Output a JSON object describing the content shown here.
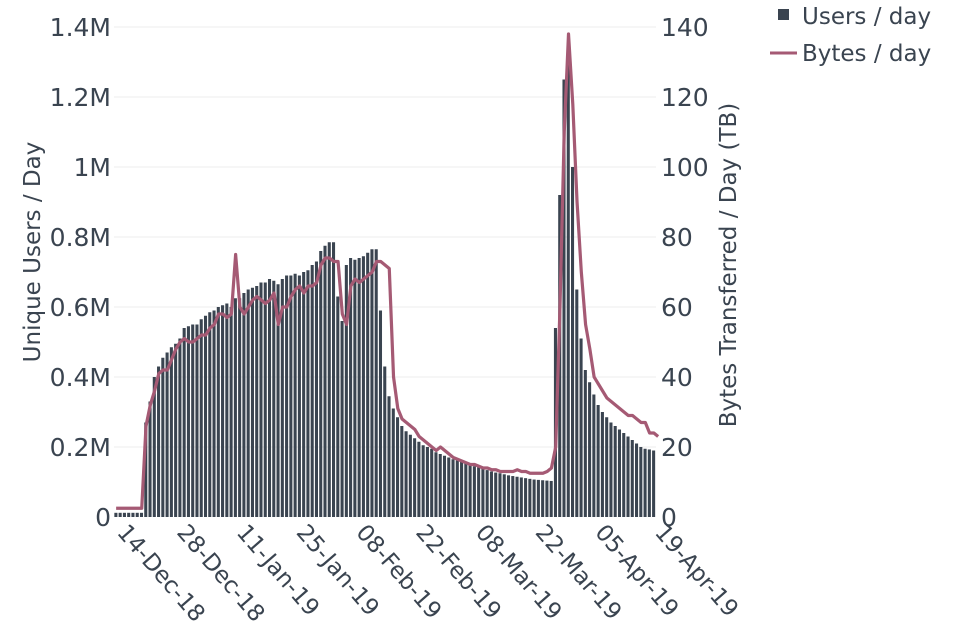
{
  "chart_data": {
    "type": "bar",
    "x_type": "date",
    "title": "",
    "ylabel": "Unique Users / Day",
    "y2label": "Bytes Transferred / Day (TB)",
    "ylim": [
      0,
      1400000
    ],
    "y2lim": [
      0,
      140
    ],
    "grid": true,
    "legend_position": "top-right",
    "colors": {
      "users": "#3a4450",
      "bytes": "#a55a74"
    },
    "y_ticks": [
      "0",
      "0.2M",
      "0.4M",
      "0.6M",
      "0.8M",
      "1M",
      "1.2M",
      "1.4M"
    ],
    "y2_ticks": [
      "0",
      "20",
      "40",
      "60",
      "80",
      "100",
      "120",
      "140"
    ],
    "x_ticks": [
      "14-Dec-18",
      "28-Dec-18",
      "11-Jan-19",
      "25-Jan-19",
      "08-Feb-19",
      "22-Feb-19",
      "08-Mar-19",
      "22-Mar-19",
      "05-Apr-19",
      "19-Apr-19"
    ],
    "x_start": "2018-12-14",
    "series": [
      {
        "name": "Users / day",
        "type": "bar",
        "axis": "y",
        "values": [
          12000,
          12000,
          12000,
          12000,
          12000,
          12000,
          12000,
          270000,
          330000,
          400000,
          430000,
          455000,
          470000,
          485000,
          495000,
          510000,
          540000,
          545000,
          550000,
          550000,
          565000,
          575000,
          585000,
          590000,
          600000,
          605000,
          610000,
          600000,
          625000,
          625000,
          640000,
          650000,
          655000,
          660000,
          670000,
          670000,
          680000,
          675000,
          665000,
          680000,
          690000,
          690000,
          695000,
          690000,
          700000,
          705000,
          720000,
          730000,
          760000,
          775000,
          785000,
          785000,
          630000,
          560000,
          720000,
          740000,
          735000,
          740000,
          745000,
          755000,
          765000,
          765000,
          590000,
          430000,
          345000,
          310000,
          285000,
          260000,
          245000,
          235000,
          225000,
          215000,
          205000,
          200000,
          195000,
          185000,
          180000,
          175000,
          170000,
          165000,
          162000,
          158000,
          155000,
          150000,
          145000,
          142000,
          138000,
          134000,
          130000,
          127000,
          125000,
          122000,
          119000,
          117000,
          115000,
          113000,
          111000,
          109000,
          107000,
          106000,
          105000,
          104000,
          103000,
          540000,
          920000,
          1250000,
          1350000,
          1000000,
          650000,
          510000,
          420000,
          385000,
          350000,
          320000,
          300000,
          285000,
          270000,
          260000,
          250000,
          240000,
          230000,
          220000,
          210000,
          200000,
          195000,
          193000,
          190000
        ]
      },
      {
        "name": "Bytes / day",
        "type": "line",
        "axis": "y2",
        "values": [
          2.5,
          2.5,
          2.5,
          2.5,
          2.5,
          2.5,
          2.5,
          26,
          32,
          36,
          41,
          42,
          42,
          45,
          48,
          50,
          51,
          50,
          50,
          51,
          52,
          52,
          54,
          55,
          58,
          58,
          57,
          58,
          75,
          60,
          58,
          60,
          62,
          63,
          62,
          61,
          62,
          64,
          55,
          60,
          60,
          63,
          65,
          66,
          64,
          66,
          66,
          67,
          72,
          74,
          74,
          73,
          73,
          58,
          55,
          66,
          68,
          67,
          68,
          69,
          70,
          73,
          73,
          72,
          71,
          40,
          31,
          28,
          27,
          26,
          25,
          23,
          22,
          21,
          20,
          19,
          20,
          19,
          18,
          17,
          16.5,
          16,
          15.5,
          15,
          15,
          14.5,
          14,
          14,
          13.5,
          13.5,
          13,
          13,
          13,
          13,
          13.5,
          13,
          13,
          12.5,
          12.5,
          12.5,
          12.5,
          13,
          14,
          20,
          60,
          110,
          138,
          118,
          90,
          70,
          55,
          48,
          40,
          38,
          36,
          34,
          33,
          32,
          31,
          30,
          29,
          29,
          28,
          27,
          27,
          24,
          24,
          23
        ]
      }
    ]
  }
}
